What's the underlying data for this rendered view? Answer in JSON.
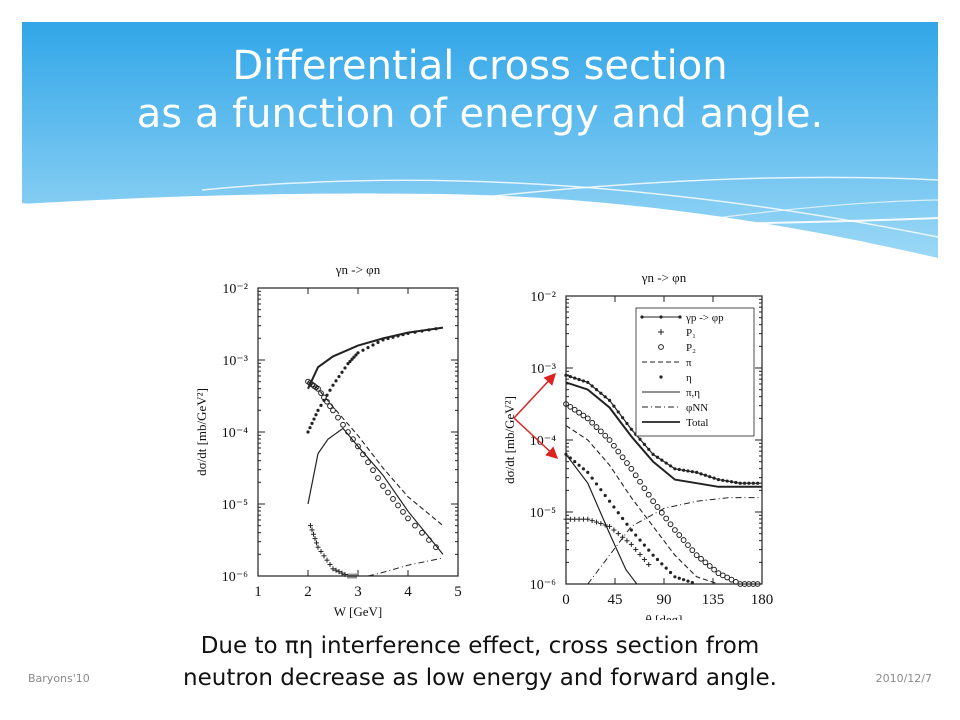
{
  "slide": {
    "title_line1": "Differential cross section",
    "title_line2": "as a function of energy and angle.",
    "caption_line1": "Due to πη interference effect, cross section from",
    "caption_line2": "neutron decrease as low energy and forward angle.",
    "footer_left": "Baryons'10",
    "footer_right": "2010/12/7",
    "colors": {
      "banner_top": "#31a6e8",
      "banner_bottom": "#9cd8f6",
      "arrow": "#dd2222"
    }
  },
  "chart_data": [
    {
      "type": "line",
      "title": "γn -> φn",
      "xlabel": "W [GeV]",
      "ylabel": "dσ/dt [mb/GeV²]",
      "xlim": [
        1,
        5
      ],
      "ylim_log10": [
        -6,
        -2
      ],
      "y_scale": "log",
      "xticks": [
        "1",
        "2",
        "3",
        "4",
        "5"
      ],
      "yticks": [
        "10⁻⁶",
        "10⁻⁵",
        "10⁻⁴",
        "10⁻³",
        "10⁻²"
      ],
      "series": [
        {
          "style": "solid",
          "x": [
            2.0,
            2.2,
            2.5,
            3.0,
            3.5,
            4.0,
            4.7
          ],
          "log10_y": [
            -3.4,
            -3.1,
            -2.95,
            -2.8,
            -2.7,
            -2.62,
            -2.55
          ]
        },
        {
          "style": "dotted",
          "x": [
            2.0,
            2.2,
            2.5,
            2.8,
            3.0,
            3.5,
            4.0,
            4.7
          ],
          "log10_y": [
            -4.0,
            -3.7,
            -3.35,
            -3.05,
            -2.9,
            -2.72,
            -2.63,
            -2.55
          ]
        },
        {
          "style": "dashed",
          "x": [
            2.0,
            2.2,
            2.5,
            3.0,
            3.5,
            4.0,
            4.7
          ],
          "log10_y": [
            -3.3,
            -3.4,
            -3.65,
            -4.05,
            -4.5,
            -4.9,
            -5.3
          ]
        },
        {
          "style": "circles",
          "x": [
            2.0,
            2.2,
            2.5,
            3.0,
            3.5,
            4.0,
            4.7
          ],
          "log10_y": [
            -3.3,
            -3.4,
            -3.7,
            -4.2,
            -4.75,
            -5.2,
            -5.7
          ]
        },
        {
          "style": "solid-thin",
          "x": [
            2.0,
            2.2,
            2.4,
            2.7,
            3.0,
            3.5,
            4.0,
            4.7
          ],
          "log10_y": [
            -5.0,
            -4.3,
            -4.1,
            -3.95,
            -4.2,
            -4.6,
            -5.1,
            -5.7
          ]
        },
        {
          "style": "crosses",
          "x": [
            2.05,
            2.2,
            2.5,
            2.8,
            3.0
          ],
          "log10_y": [
            -5.3,
            -5.6,
            -5.9,
            -6.0,
            -6.0
          ]
        },
        {
          "style": "dash-dot",
          "x": [
            3.2,
            3.5,
            4.0,
            4.7
          ],
          "log10_y": [
            -6.0,
            -5.95,
            -5.85,
            -5.75
          ]
        }
      ]
    },
    {
      "type": "line",
      "title": "γn -> φn",
      "xlabel": "θ [deg]",
      "ylabel": "dσ/dt [mb/GeV²]",
      "xlim": [
        0,
        180
      ],
      "ylim_log10": [
        -6,
        -2
      ],
      "y_scale": "log",
      "xticks": [
        "0",
        "45",
        "90",
        "135",
        "180"
      ],
      "yticks": [
        "10⁻⁶",
        "10⁻⁵",
        "10⁻⁴",
        "10⁻³",
        "10⁻²"
      ],
      "legend_position": "top-right",
      "legend": [
        "γp -> φp",
        "P₁",
        "P₂",
        "π",
        "η",
        "π,η",
        "φNN",
        "Total"
      ],
      "series": [
        {
          "name": "γp -> φp",
          "style": "dots-line",
          "x": [
            0,
            20,
            40,
            60,
            80,
            100,
            120,
            140,
            160,
            180
          ],
          "log10_y": [
            -3.1,
            -3.2,
            -3.45,
            -3.85,
            -4.2,
            -4.4,
            -4.45,
            -4.55,
            -4.6,
            -4.6
          ]
        },
        {
          "name": "Total",
          "style": "solid",
          "x": [
            0,
            20,
            40,
            60,
            80,
            100,
            120,
            140,
            160,
            180
          ],
          "log10_y": [
            -3.2,
            -3.3,
            -3.55,
            -3.95,
            -4.3,
            -4.55,
            -4.6,
            -4.65,
            -4.65,
            -4.65
          ]
        },
        {
          "name": "P₂",
          "style": "circles",
          "x": [
            0,
            20,
            40,
            60,
            80,
            100,
            120,
            140,
            160,
            180
          ],
          "log10_y": [
            -3.5,
            -3.7,
            -4.0,
            -4.4,
            -4.85,
            -5.25,
            -5.6,
            -5.85,
            -6.0,
            -6.0
          ]
        },
        {
          "name": "π",
          "style": "dashed",
          "x": [
            0,
            20,
            40,
            60,
            80,
            100,
            120,
            140
          ],
          "log10_y": [
            -3.8,
            -4.0,
            -4.35,
            -4.8,
            -5.2,
            -5.6,
            -5.9,
            -6.0
          ]
        },
        {
          "name": "η",
          "style": "dots",
          "x": [
            0,
            20,
            40,
            60,
            80,
            100,
            120
          ],
          "log10_y": [
            -4.2,
            -4.45,
            -4.85,
            -5.25,
            -5.6,
            -5.9,
            -6.0
          ]
        },
        {
          "name": "π,η",
          "style": "solid-thin",
          "x": [
            0,
            20,
            40,
            55,
            65
          ],
          "log10_y": [
            -4.2,
            -4.6,
            -5.3,
            -5.8,
            -6.0
          ]
        },
        {
          "name": "P₁",
          "style": "crosses",
          "x": [
            0,
            20,
            40,
            60,
            80
          ],
          "log10_y": [
            -5.1,
            -5.1,
            -5.2,
            -5.45,
            -5.8
          ]
        },
        {
          "name": "φNN",
          "style": "dash-dot",
          "x": [
            20,
            40,
            60,
            90,
            120,
            150,
            180
          ],
          "log10_y": [
            -6.0,
            -5.6,
            -5.2,
            -4.95,
            -4.85,
            -4.8,
            -4.8
          ]
        }
      ]
    }
  ]
}
